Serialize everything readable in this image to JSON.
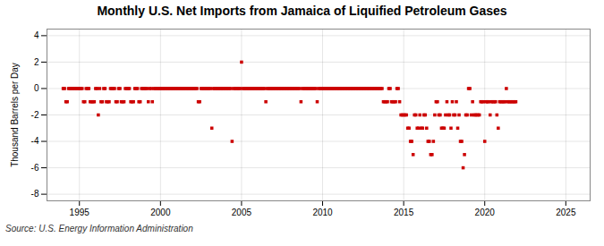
{
  "chart_data": {
    "type": "scatter",
    "title": "Monthly U.S. Net Imports from Jamaica of Liquified Petroleum Gases",
    "ylabel": "Thousand Barrels per Day",
    "source": "Source: U.S. Energy Information Administration",
    "color": "#cc0000",
    "marker": "square",
    "grid": true,
    "xlim": [
      1993.0,
      2026.5
    ],
    "ylim": [
      -8.5,
      4.5
    ],
    "xticks": [
      1995,
      2000,
      2005,
      2010,
      2015,
      2020,
      2025
    ],
    "yticks": [
      -8,
      -6,
      -4,
      -2,
      0,
      2,
      4
    ],
    "x": [
      1994.0,
      1994.083,
      1994.167,
      1994.25,
      1994.333,
      1994.417,
      1994.5,
      1994.583,
      1994.667,
      1994.75,
      1994.833,
      1994.917,
      1995.0,
      1995.083,
      1995.167,
      1995.25,
      1995.333,
      1995.417,
      1995.5,
      1995.583,
      1995.667,
      1995.75,
      1995.833,
      1995.917,
      1996.0,
      1996.083,
      1996.167,
      1996.25,
      1996.333,
      1996.417,
      1996.5,
      1996.583,
      1996.667,
      1996.75,
      1996.833,
      1996.917,
      1997.0,
      1997.083,
      1997.167,
      1997.25,
      1997.333,
      1997.417,
      1997.5,
      1997.583,
      1997.667,
      1997.75,
      1997.833,
      1997.917,
      1998.0,
      1998.083,
      1998.167,
      1998.25,
      1998.333,
      1998.417,
      1998.5,
      1998.583,
      1998.667,
      1998.75,
      1998.833,
      1998.917,
      1999.0,
      1999.083,
      1999.167,
      1999.25,
      1999.333,
      1999.417,
      1999.5,
      1999.583,
      1999.667,
      1999.75,
      1999.833,
      1999.917,
      2000.0,
      2000.083,
      2000.167,
      2000.25,
      2000.333,
      2000.417,
      2000.5,
      2000.583,
      2000.667,
      2000.75,
      2000.833,
      2000.917,
      2001.0,
      2001.083,
      2001.167,
      2001.25,
      2001.333,
      2001.417,
      2001.5,
      2001.583,
      2001.667,
      2001.75,
      2001.833,
      2001.917,
      2002.0,
      2002.083,
      2002.167,
      2002.25,
      2002.333,
      2002.417,
      2002.5,
      2002.583,
      2002.667,
      2002.75,
      2002.833,
      2002.917,
      2003.0,
      2003.083,
      2003.167,
      2003.25,
      2003.333,
      2003.417,
      2003.5,
      2003.583,
      2003.667,
      2003.75,
      2003.833,
      2003.917,
      2004.0,
      2004.083,
      2004.167,
      2004.25,
      2004.333,
      2004.417,
      2004.5,
      2004.583,
      2004.667,
      2004.75,
      2004.833,
      2004.917,
      2005.0,
      2005.083,
      2005.167,
      2005.25,
      2005.333,
      2005.417,
      2005.5,
      2005.583,
      2005.667,
      2005.75,
      2005.833,
      2005.917,
      2006.0,
      2006.083,
      2006.167,
      2006.25,
      2006.333,
      2006.417,
      2006.5,
      2006.583,
      2006.667,
      2006.75,
      2006.833,
      2006.917,
      2007.0,
      2007.083,
      2007.167,
      2007.25,
      2007.333,
      2007.417,
      2007.5,
      2007.583,
      2007.667,
      2007.75,
      2007.833,
      2007.917,
      2008.0,
      2008.083,
      2008.167,
      2008.25,
      2008.333,
      2008.417,
      2008.5,
      2008.583,
      2008.667,
      2008.75,
      2008.833,
      2008.917,
      2009.0,
      2009.083,
      2009.167,
      2009.25,
      2009.333,
      2009.417,
      2009.5,
      2009.583,
      2009.667,
      2009.75,
      2009.833,
      2009.917,
      2010.0,
      2010.083,
      2010.167,
      2010.25,
      2010.333,
      2010.417,
      2010.5,
      2010.583,
      2010.667,
      2010.75,
      2010.833,
      2010.917,
      2011.0,
      2011.083,
      2011.167,
      2011.25,
      2011.333,
      2011.417,
      2011.5,
      2011.583,
      2011.667,
      2011.75,
      2011.833,
      2011.917,
      2012.0,
      2012.083,
      2012.167,
      2012.25,
      2012.333,
      2012.417,
      2012.5,
      2012.583,
      2012.667,
      2012.75,
      2012.833,
      2012.917,
      2013.0,
      2013.083,
      2013.167,
      2013.25,
      2013.333,
      2013.417,
      2013.5,
      2013.583,
      2013.667,
      2013.75,
      2013.833,
      2013.917,
      2014.0,
      2014.083,
      2014.167,
      2014.25,
      2014.333,
      2014.417,
      2014.5,
      2014.583,
      2014.667,
      2014.75,
      2014.833,
      2014.917,
      2015.0,
      2015.083,
      2015.167,
      2015.25,
      2015.333,
      2015.417,
      2015.5,
      2015.583,
      2015.667,
      2015.75,
      2015.833,
      2015.917,
      2016.0,
      2016.083,
      2016.167,
      2016.25,
      2016.333,
      2016.417,
      2016.5,
      2016.583,
      2016.667,
      2016.75,
      2016.833,
      2016.917,
      2017.0,
      2017.083,
      2017.167,
      2017.25,
      2017.333,
      2017.417,
      2017.5,
      2017.583,
      2017.667,
      2017.75,
      2017.833,
      2017.917,
      2018.0,
      2018.083,
      2018.167,
      2018.25,
      2018.333,
      2018.417,
      2018.5,
      2018.583,
      2018.667,
      2018.75,
      2018.833,
      2018.917,
      2019.0,
      2019.083,
      2019.167,
      2019.25,
      2019.333,
      2019.417,
      2019.5,
      2019.583,
      2019.667,
      2019.75,
      2019.833,
      2019.917,
      2020.0,
      2020.083,
      2020.167,
      2020.25,
      2020.333,
      2020.417,
      2020.5,
      2020.583,
      2020.667,
      2020.75,
      2020.833,
      2020.917,
      2021.0,
      2021.083,
      2021.167,
      2021.25,
      2021.333,
      2021.417,
      2021.5,
      2021.583,
      2021.667,
      2021.75,
      2021.833,
      2021.917
    ],
    "values": [
      0,
      0,
      -1,
      -1,
      0,
      0,
      0,
      0,
      0,
      0,
      0,
      0,
      0,
      0,
      0,
      -1,
      -1,
      0,
      0,
      0,
      -1,
      -1,
      -1,
      -1,
      0,
      0,
      -2,
      0,
      -1,
      -1,
      0,
      0,
      -1,
      -1,
      -1,
      0,
      0,
      0,
      0,
      -1,
      -1,
      0,
      0,
      -1,
      -1,
      -1,
      0,
      0,
      0,
      0,
      -1,
      -1,
      -1,
      0,
      0,
      0,
      -1,
      -1,
      0,
      0,
      0,
      0,
      0,
      -1,
      0,
      0,
      -1,
      0,
      0,
      0,
      0,
      0,
      0,
      0,
      0,
      0,
      0,
      0,
      0,
      0,
      0,
      0,
      0,
      0,
      0,
      0,
      0,
      0,
      0,
      0,
      0,
      0,
      0,
      0,
      0,
      0,
      0,
      0,
      0,
      0,
      -1,
      -1,
      0,
      0,
      0,
      0,
      0,
      0,
      0,
      0,
      -3,
      0,
      0,
      0,
      0,
      0,
      0,
      0,
      0,
      0,
      0,
      0,
      0,
      0,
      0,
      -4,
      0,
      0,
      0,
      0,
      0,
      0,
      2,
      0,
      0,
      0,
      0,
      0,
      0,
      0,
      0,
      0,
      0,
      0,
      0,
      0,
      0,
      0,
      0,
      0,
      -1,
      0,
      0,
      0,
      0,
      0,
      0,
      0,
      0,
      0,
      0,
      0,
      0,
      0,
      0,
      0,
      0,
      0,
      0,
      0,
      0,
      0,
      0,
      0,
      0,
      0,
      -1,
      0,
      0,
      0,
      0,
      0,
      0,
      0,
      0,
      0,
      0,
      0,
      -1,
      0,
      0,
      0,
      0,
      0,
      0,
      0,
      0,
      0,
      0,
      0,
      0,
      0,
      0,
      0,
      0,
      0,
      0,
      0,
      0,
      0,
      0,
      0,
      0,
      0,
      0,
      0,
      0,
      0,
      0,
      0,
      0,
      0,
      0,
      0,
      0,
      0,
      0,
      0,
      0,
      0,
      0,
      0,
      0,
      0,
      0,
      0,
      0,
      -1,
      -1,
      -1,
      -1,
      0,
      0,
      -1,
      -1,
      -1,
      -1,
      0,
      0,
      -1,
      -2,
      -2,
      -2,
      -2,
      -2,
      -3,
      -3,
      -4,
      -4,
      -5,
      -2,
      -2,
      -3,
      -3,
      -2,
      -3,
      -3,
      -2,
      -2,
      -3,
      -4,
      -4,
      -5,
      -5,
      -4,
      -2,
      -1,
      -1,
      -2,
      -2,
      -3,
      -3,
      -3,
      -2,
      -1,
      -2,
      -2,
      -3,
      -1,
      -2,
      -2,
      -1,
      -3,
      -2,
      -4,
      -4,
      -6,
      -5,
      -2,
      -2,
      0,
      0,
      -2,
      -1,
      -2,
      -2,
      -2,
      -2,
      -2,
      -1,
      -1,
      -1,
      -4,
      -1,
      -1,
      -1,
      -2,
      -1,
      -1,
      -1,
      -1,
      -2,
      -3,
      -1,
      -1,
      -1,
      -1,
      -1,
      0,
      -1,
      -1,
      -1,
      -1,
      -1,
      -1,
      -1
    ]
  }
}
